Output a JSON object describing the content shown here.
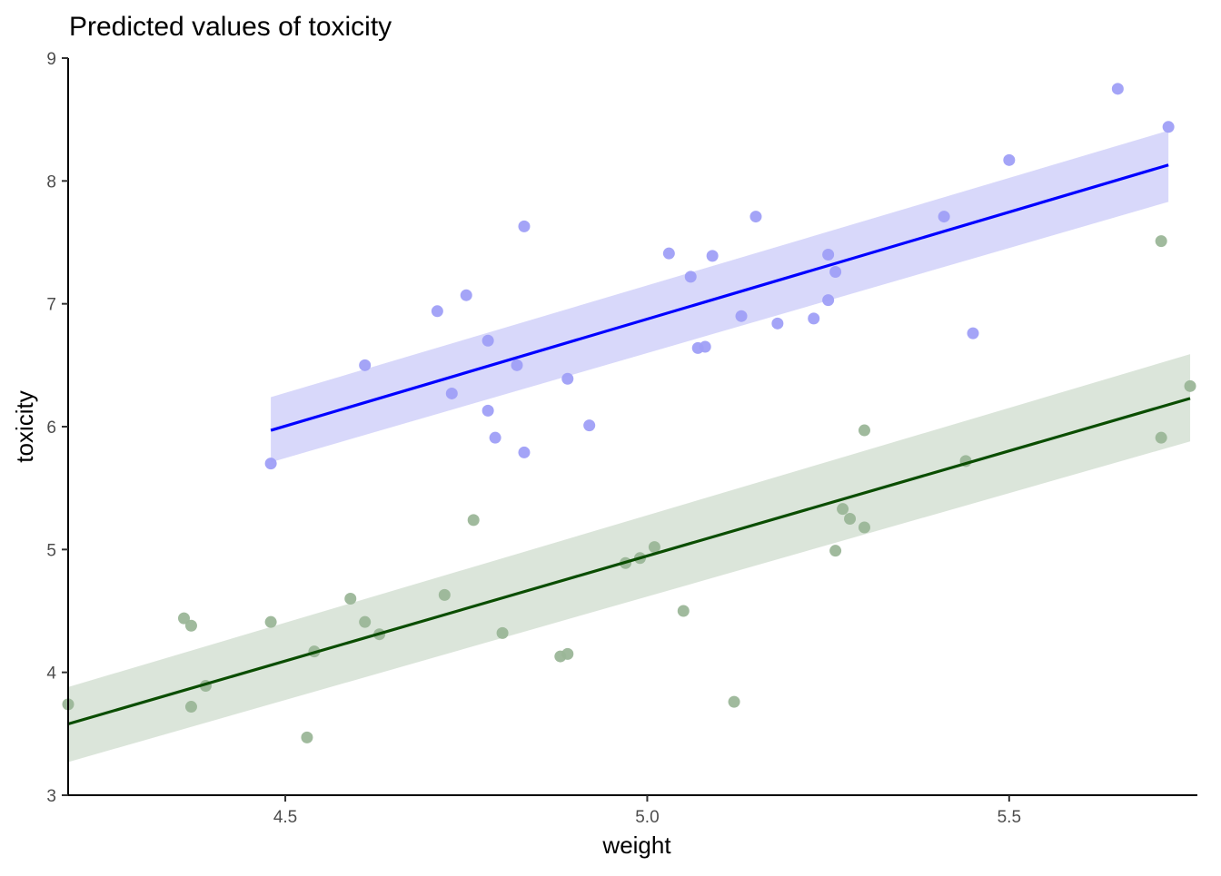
{
  "chart_data": {
    "type": "scatter",
    "title": "Predicted values of toxicity",
    "xlabel": "weight",
    "ylabel": "toxicity",
    "xlim": [
      4.2,
      5.76
    ],
    "ylim": [
      3,
      9
    ],
    "x_ticks": [
      4.5,
      5.0,
      5.5
    ],
    "x_tick_labels": [
      "4.5",
      "5.0",
      "5.5"
    ],
    "y_ticks": [
      3,
      4,
      5,
      6,
      7,
      8,
      9
    ],
    "y_tick_labels": [
      "3",
      "4",
      "5",
      "6",
      "7",
      "8",
      "9"
    ],
    "grid": false,
    "legend": "none",
    "series": [
      {
        "color": "#0000ff",
        "point_color": "#9f9ff7",
        "band_color": "#d8d8fa",
        "fit": {
          "x": [
            4.48,
            5.72
          ],
          "y": [
            5.97,
            8.13
          ],
          "lower": [
            5.71,
            7.83
          ],
          "upper": [
            6.24,
            8.41
          ]
        },
        "points": [
          [
            4.48,
            5.7
          ],
          [
            4.61,
            6.5
          ],
          [
            4.71,
            6.94
          ],
          [
            4.73,
            6.27
          ],
          [
            4.75,
            7.07
          ],
          [
            4.78,
            6.7
          ],
          [
            4.78,
            6.13
          ],
          [
            4.79,
            5.91
          ],
          [
            4.82,
            6.5
          ],
          [
            4.83,
            7.63
          ],
          [
            4.83,
            5.79
          ],
          [
            4.89,
            6.39
          ],
          [
            4.92,
            6.01
          ],
          [
            5.03,
            7.41
          ],
          [
            5.06,
            7.22
          ],
          [
            5.07,
            6.64
          ],
          [
            5.08,
            6.65
          ],
          [
            5.09,
            7.39
          ],
          [
            5.13,
            6.9
          ],
          [
            5.15,
            7.71
          ],
          [
            5.18,
            6.84
          ],
          [
            5.23,
            6.88
          ],
          [
            5.25,
            7.4
          ],
          [
            5.25,
            7.03
          ],
          [
            5.26,
            7.26
          ],
          [
            5.41,
            7.71
          ],
          [
            5.45,
            6.76
          ],
          [
            5.5,
            8.17
          ],
          [
            5.65,
            8.75
          ],
          [
            5.72,
            8.44
          ]
        ]
      },
      {
        "color": "#0a4d00",
        "point_color": "#9bb698",
        "band_color": "#dbe5da",
        "fit": {
          "x": [
            4.2,
            5.75
          ],
          "y": [
            3.58,
            6.23
          ],
          "lower": [
            3.27,
            5.88
          ],
          "upper": [
            3.88,
            6.59
          ]
        },
        "points": [
          [
            4.2,
            3.74
          ],
          [
            4.36,
            4.44
          ],
          [
            4.37,
            4.38
          ],
          [
            4.37,
            3.72
          ],
          [
            4.39,
            3.89
          ],
          [
            4.48,
            4.41
          ],
          [
            4.53,
            3.47
          ],
          [
            4.54,
            4.17
          ],
          [
            4.59,
            4.6
          ],
          [
            4.61,
            4.41
          ],
          [
            4.63,
            4.31
          ],
          [
            4.72,
            4.63
          ],
          [
            4.76,
            5.24
          ],
          [
            4.8,
            4.32
          ],
          [
            4.88,
            4.13
          ],
          [
            4.89,
            4.15
          ],
          [
            4.97,
            4.89
          ],
          [
            4.99,
            4.93
          ],
          [
            5.01,
            5.02
          ],
          [
            5.05,
            4.5
          ],
          [
            5.12,
            3.76
          ],
          [
            5.26,
            4.99
          ],
          [
            5.27,
            5.33
          ],
          [
            5.28,
            5.25
          ],
          [
            5.3,
            5.97
          ],
          [
            5.3,
            5.18
          ],
          [
            5.44,
            5.72
          ],
          [
            5.71,
            7.51
          ],
          [
            5.71,
            5.91
          ],
          [
            5.75,
            6.33
          ]
        ]
      }
    ]
  }
}
